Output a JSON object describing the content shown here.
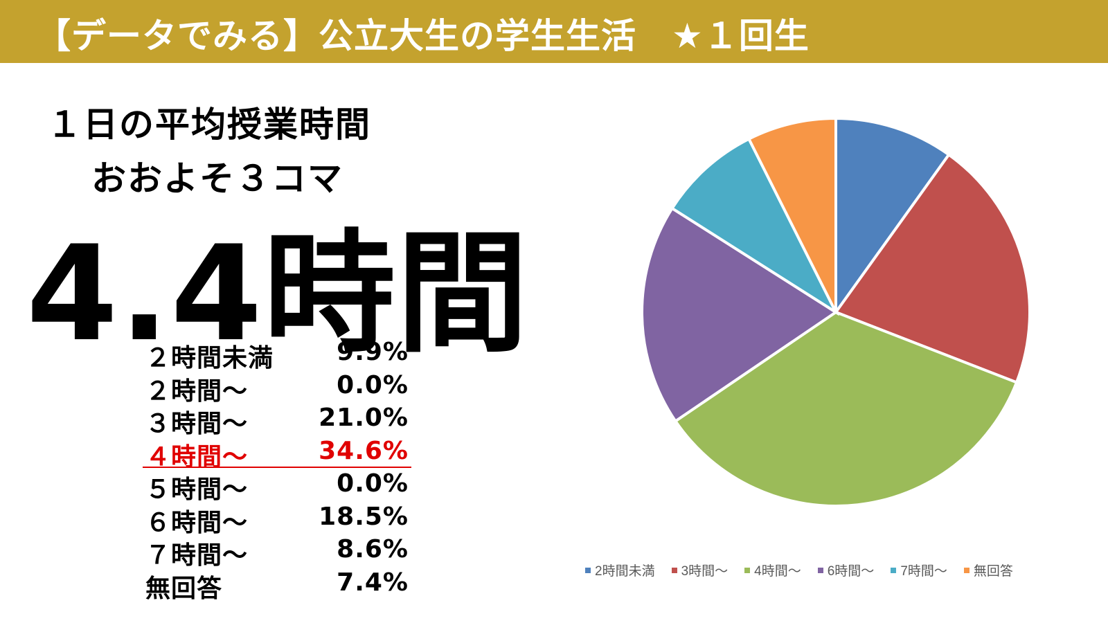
{
  "header": {
    "title": "【データでみる】公立大生の学生生活　★１回生",
    "bg_color": "#c4a22e"
  },
  "headline": {
    "line1": "１日の平均授業時間",
    "line2": "おおよそ３コマ",
    "value": "4.4時間"
  },
  "distribution": [
    {
      "label": "２時間未満",
      "value": "9.9%",
      "highlight": false
    },
    {
      "label": "２時間〜",
      "value": "0.0%",
      "highlight": false
    },
    {
      "label": "３時間〜",
      "value": "21.0%",
      "highlight": false
    },
    {
      "label": "４時間〜",
      "value": "34.6%",
      "highlight": true
    },
    {
      "label": "５時間〜",
      "value": "0.0%",
      "highlight": false
    },
    {
      "label": "６時間〜",
      "value": "18.5%",
      "highlight": false
    },
    {
      "label": "７時間〜",
      "value": "8.6%",
      "highlight": false
    },
    {
      "label": "無回答",
      "value": "7.4%",
      "highlight": false
    }
  ],
  "chart_data": {
    "type": "pie",
    "categories": [
      "2時間未満",
      "3時間〜",
      "4時間〜",
      "6時間〜",
      "7時間〜",
      "無回答"
    ],
    "values": [
      9.9,
      21.0,
      34.6,
      18.5,
      8.6,
      7.4
    ],
    "colors": [
      "#4f81bd",
      "#c0504d",
      "#9bbb59",
      "#8064a2",
      "#4bacc6",
      "#f79646"
    ],
    "start_angle_deg": 0,
    "direction": "clockwise",
    "legend_position": "bottom"
  }
}
